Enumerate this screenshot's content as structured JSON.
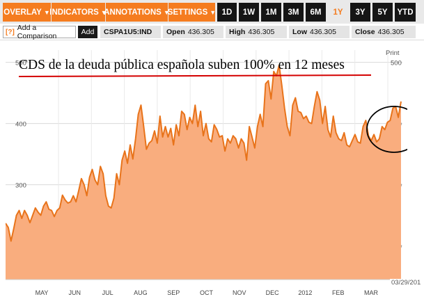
{
  "toolbar": {
    "menus": [
      {
        "label": "OVERLAY",
        "arrow": "▼"
      },
      {
        "label": "INDICATORS",
        "arrow": "▼"
      },
      {
        "label": "ANNOTATIONS",
        "arrow": "▼"
      },
      {
        "label": "SETTINGS",
        "arrow": "▼"
      }
    ],
    "ranges": [
      "1D",
      "1W",
      "1M",
      "3M",
      "6M",
      "1Y",
      "3Y",
      "5Y",
      "YTD"
    ],
    "active_range": "1Y"
  },
  "infobar": {
    "compare_icon": "[?]",
    "compare_label": "Add a Comparison",
    "add_label": "Add",
    "ticker": "CSPA1U5:IND",
    "open_label": "Open",
    "open_value": "436.305",
    "high_label": "High",
    "high_value": "436.305",
    "low_label": "Low",
    "low_value": "436.305",
    "close_label": "Close",
    "close_value": "436.305"
  },
  "chart": {
    "headline": "CDS de la deuda pública española suben 100% en 12 meses",
    "print_label": "Print",
    "date_stamp": "03/29/201"
  },
  "colors": {
    "accent": "#f57c1f",
    "fill": "#f9ad7e",
    "line": "#e8731a",
    "underline": "#d40000"
  },
  "chart_data": {
    "type": "area",
    "title": "CDS de la deuda pública española suben 100% en 12 meses",
    "ylim": [
      145,
      520
    ],
    "y_ticks": [
      200,
      300,
      400,
      500
    ],
    "x_labels": [
      "MAY",
      "JUN",
      "JUL",
      "AUG",
      "SEP",
      "OCT",
      "NOV",
      "DEC",
      "2012",
      "FEB",
      "MAR"
    ],
    "grid": true,
    "highlight": "circle around the most recent values (~400–440)",
    "series": [
      {
        "values": [
          237,
          230,
          208,
          228,
          250,
          258,
          245,
          258,
          250,
          238,
          250,
          262,
          255,
          250,
          265,
          272,
          260,
          258,
          248,
          258,
          262,
          283,
          275,
          270,
          272,
          282,
          272,
          290,
          310,
          300,
          282,
          312,
          325,
          308,
          300,
          330,
          318,
          282,
          265,
          262,
          278,
          318,
          300,
          340,
          355,
          335,
          365,
          342,
          375,
          415,
          430,
          395,
          358,
          368,
          372,
          388,
          368,
          412,
          378,
          395,
          378,
          392,
          365,
          398,
          380,
          420,
          415,
          390,
          410,
          400,
          430,
          395,
          420,
          380,
          400,
          375,
          370,
          398,
          390,
          378,
          380,
          355,
          375,
          368,
          380,
          375,
          360,
          375,
          368,
          340,
          395,
          378,
          360,
          395,
          415,
          395,
          465,
          470,
          440,
          485,
          478,
          495,
          462,
          425,
          395,
          380,
          430,
          442,
          420,
          418,
          408,
          412,
          402,
          400,
          428,
          452,
          438,
          400,
          428,
          390,
          378,
          412,
          385,
          375,
          372,
          385,
          365,
          362,
          372,
          382,
          370,
          368,
          395,
          405,
          380,
          372,
          382,
          370,
          375,
          395,
          390,
          402,
          405,
          425,
          428,
          410,
          436
        ]
      }
    ]
  }
}
